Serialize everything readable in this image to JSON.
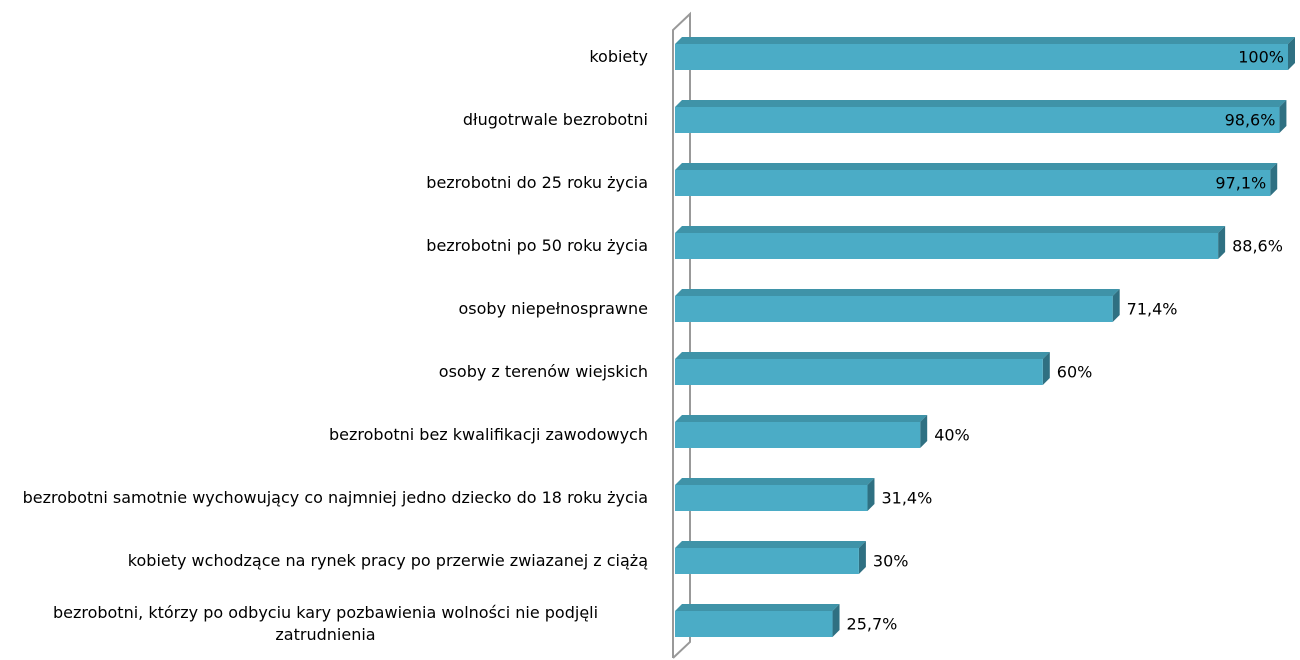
{
  "chart_data": {
    "type": "bar",
    "orientation": "horizontal",
    "categories": [
      "kobiety",
      "długotrwale bezrobotni",
      "bezrobotni do 25 roku życia",
      "bezrobotni po 50 roku życia ",
      "osoby niepełnosprawne",
      "osoby z terenów wiejskich",
      "bezrobotni bez kwalifikacji zawodowych",
      "bezrobotni samotnie wychowujący co najmniej jedno dziecko do 18 roku życia",
      "kobiety wchodzące na rynek pracy po przerwie zwiazanej z ciążą",
      "bezrobotni, którzy po odbyciu kary pozbawienia wolności nie podjęli zatrudnienia"
    ],
    "values": [
      100,
      98.6,
      97.1,
      88.6,
      71.4,
      60,
      40,
      31.4,
      30,
      25.7
    ],
    "value_labels": [
      "100%",
      "98,6%",
      "97,1%",
      "88,6%",
      "71,4%",
      "60%",
      "40%",
      "31,4%",
      "30%",
      "25,7%"
    ],
    "color": "#4bacc6",
    "xlim": [
      0,
      100
    ]
  }
}
